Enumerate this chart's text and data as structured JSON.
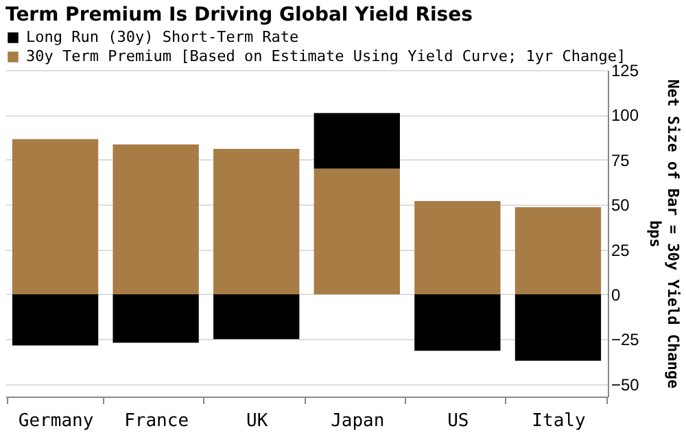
{
  "chart_data": {
    "type": "bar",
    "stacked": true,
    "title": "Term Premium Is Driving Global Yield Rises",
    "ylabel": "Net Size of Bar = 30y Yield Change\nbps",
    "categories": [
      "Germany",
      "France",
      "UK",
      "Japan",
      "US",
      "Italy"
    ],
    "series": [
      {
        "name": "30y Term Premium [Based on Estimate Using Yield Curve; 1yr Change]",
        "color": "#a87c45",
        "values": [
          86.5,
          83.5,
          81,
          70,
          52,
          48.5
        ]
      },
      {
        "name": "Long Run (30y) Short-Term Rate",
        "color": "#000000",
        "values": [
          -28.5,
          -27,
          -25,
          31,
          -31.5,
          -37
        ]
      }
    ],
    "ylim": [
      -57,
      125
    ],
    "yticks": [
      -50,
      -25,
      0,
      25,
      50,
      75,
      100,
      125
    ],
    "grid": "y",
    "legend": "top left"
  }
}
